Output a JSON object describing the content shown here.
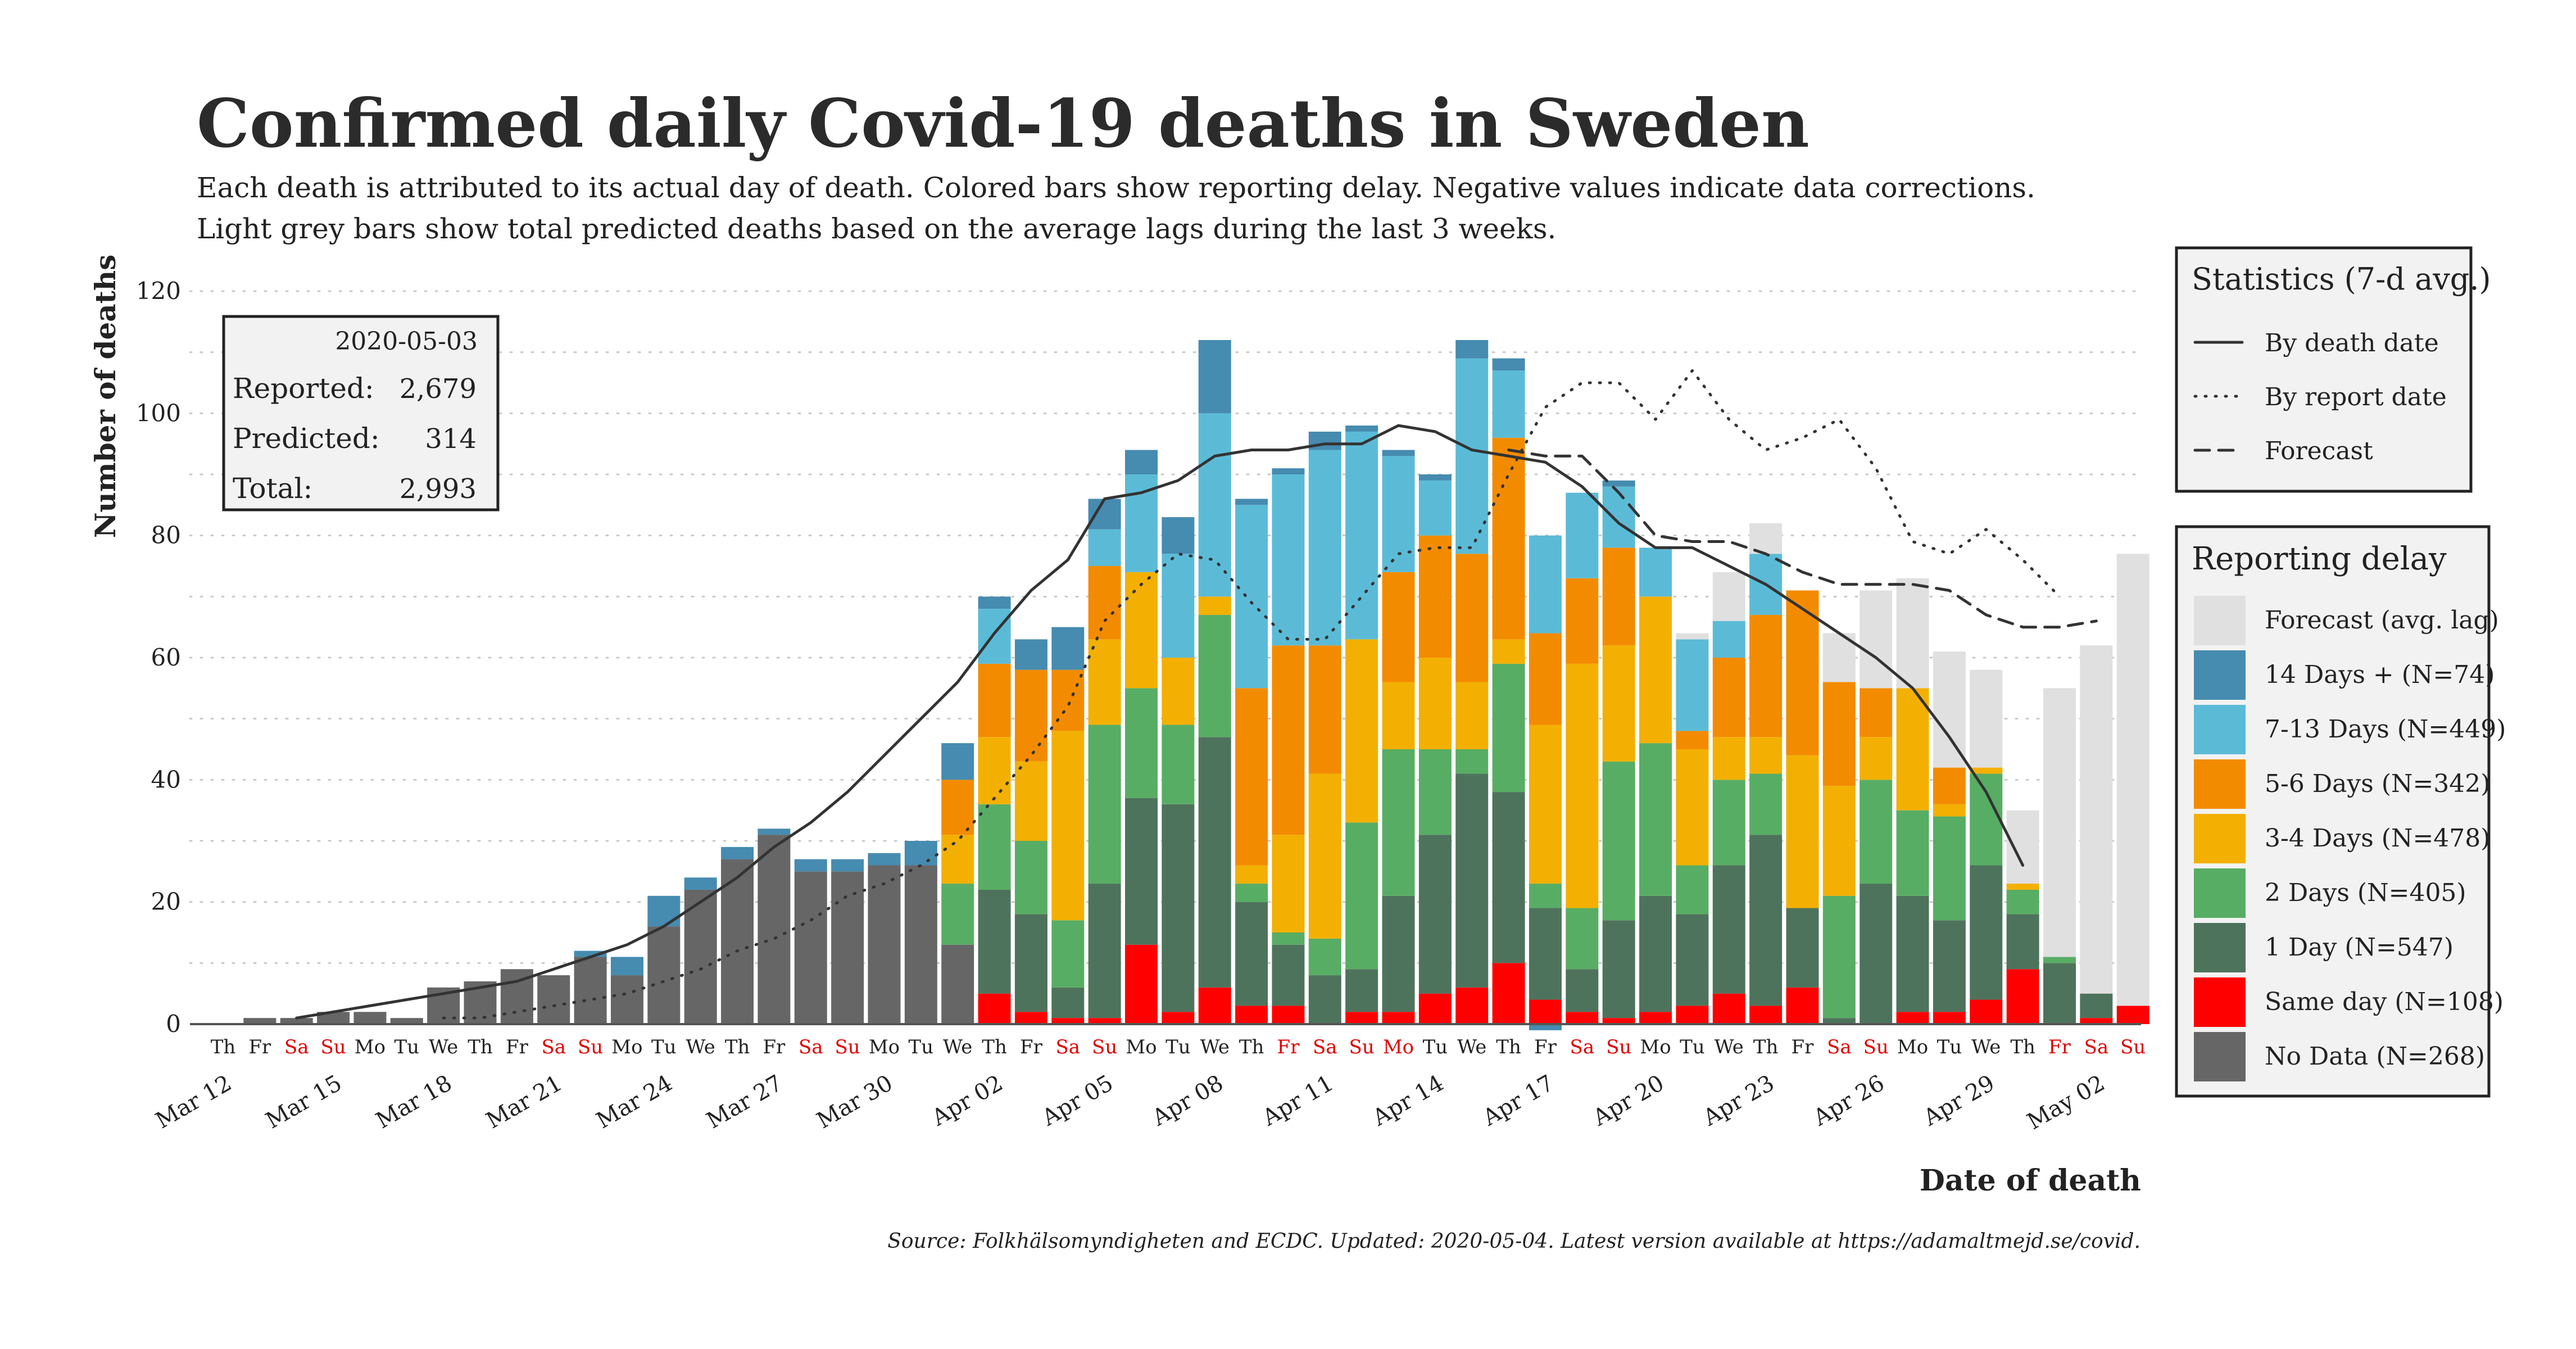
{
  "title": "Confirmed daily Covid-19 deaths in Sweden",
  "subtitle_line1": "Each death is attributed to its actual day of death. Colored bars show reporting delay. Negative values indicate data corrections.",
  "subtitle_line2": "Light grey bars show total predicted deaths based on the average lags during the last 3 weeks.",
  "caption": "Source: Folkhälsomyndigheten and ECDC. Updated: 2020-05-04. Latest version available at https://adamaltmejd.se/covid.",
  "infobox": {
    "date": "2020-05-03",
    "reported_label": "Reported:",
    "reported_value": "2,679",
    "predicted_label": "Predicted:",
    "predicted_value": "314",
    "total_label": "Total:",
    "total_value": "2,993"
  },
  "colors": {
    "No Data": "#666666",
    "Same day": "#ff0000",
    "1 Day": "#4e735c",
    "2 Days": "#58ad64",
    "3-4 Days": "#f3b002",
    "5-6 Days": "#f38b00",
    "7-13 Days": "#5bbbd7",
    "14 Days +": "#468bb0",
    "Forecast": "#e0e0e0",
    "weekend_label": "#e00000",
    "weekday_label": "#222222"
  },
  "chart_data": {
    "type": "bar",
    "stacked": true,
    "title": "Confirmed daily Covid-19 deaths in Sweden",
    "xlabel": "Date of death",
    "ylabel": "Number of deaths",
    "ylim": [
      0,
      120
    ],
    "yticks": [
      0,
      20,
      40,
      60,
      80,
      100,
      120
    ],
    "grid": true,
    "dates": [
      "Mar 12",
      "Mar 13",
      "Mar 14",
      "Mar 15",
      "Mar 16",
      "Mar 17",
      "Mar 18",
      "Mar 19",
      "Mar 20",
      "Mar 21",
      "Mar 22",
      "Mar 23",
      "Mar 24",
      "Mar 25",
      "Mar 26",
      "Mar 27",
      "Mar 28",
      "Mar 29",
      "Mar 30",
      "Mar 31",
      "Apr 01",
      "Apr 02",
      "Apr 03",
      "Apr 04",
      "Apr 05",
      "Apr 06",
      "Apr 07",
      "Apr 08",
      "Apr 09",
      "Apr 10",
      "Apr 11",
      "Apr 12",
      "Apr 13",
      "Apr 14",
      "Apr 15",
      "Apr 16",
      "Apr 17",
      "Apr 18",
      "Apr 19",
      "Apr 20",
      "Apr 21",
      "Apr 22",
      "Apr 23",
      "Apr 24",
      "Apr 25",
      "Apr 26",
      "Apr 27",
      "Apr 28",
      "Apr 29",
      "Apr 30",
      "May 01",
      "May 02",
      "May 03"
    ],
    "weekdays": [
      "Th",
      "Fr",
      "Sa",
      "Su",
      "Mo",
      "Tu",
      "We",
      "Th",
      "Fr",
      "Sa",
      "Su",
      "Mo",
      "Tu",
      "We",
      "Th",
      "Fr",
      "Sa",
      "Su",
      "Mo",
      "Tu",
      "We",
      "Th",
      "Fr",
      "Sa",
      "Su",
      "Mo",
      "Tu",
      "We",
      "Th",
      "Fr",
      "Sa",
      "Su",
      "Mo",
      "Tu",
      "We",
      "Th",
      "Fr",
      "Sa",
      "Su",
      "Mo",
      "Tu",
      "We",
      "Th",
      "Fr",
      "Sa",
      "Su",
      "Mo",
      "Tu",
      "We",
      "Th",
      "Fr",
      "Sa",
      "Su"
    ],
    "red_weekday_indices": [
      2,
      3,
      9,
      10,
      16,
      17,
      23,
      24,
      29,
      30,
      31,
      32,
      37,
      38,
      44,
      45,
      50,
      51,
      52
    ],
    "x_tick_labels": [
      "Mar 12",
      "Mar 15",
      "Mar 18",
      "Mar 21",
      "Mar 24",
      "Mar 27",
      "Mar 30",
      "Apr 02",
      "Apr 05",
      "Apr 08",
      "Apr 11",
      "Apr 14",
      "Apr 17",
      "Apr 20",
      "Apr 23",
      "Apr 26",
      "Apr 29",
      "May 02"
    ],
    "x_tick_indices": [
      0,
      3,
      6,
      9,
      12,
      15,
      18,
      21,
      24,
      27,
      30,
      33,
      36,
      39,
      42,
      45,
      48,
      51
    ],
    "series": [
      {
        "name": "No Data",
        "legend": "No Data (N=268)",
        "values": [
          0,
          1,
          1,
          2,
          2,
          1,
          6,
          7,
          9,
          8,
          11,
          8,
          16,
          22,
          27,
          31,
          25,
          25,
          26,
          26,
          13,
          0,
          0,
          0,
          0,
          0,
          0,
          0,
          0,
          0,
          0,
          0,
          0,
          0,
          0,
          0,
          0,
          0,
          0,
          0,
          0,
          0,
          0,
          0,
          0,
          0,
          0,
          0,
          0,
          0,
          0,
          0,
          0
        ]
      },
      {
        "name": "Same day",
        "legend": "Same day (N=108)",
        "values": [
          0,
          0,
          0,
          0,
          0,
          0,
          0,
          0,
          0,
          0,
          0,
          0,
          0,
          0,
          0,
          0,
          0,
          0,
          0,
          0,
          0,
          5,
          2,
          1,
          1,
          13,
          2,
          6,
          3,
          3,
          0,
          2,
          2,
          5,
          6,
          10,
          4,
          2,
          1,
          2,
          3,
          5,
          3,
          6,
          0,
          0,
          2,
          2,
          4,
          9,
          0,
          1,
          3
        ]
      },
      {
        "name": "1 Day",
        "legend": "1 Day (N=547)",
        "values": [
          0,
          0,
          0,
          0,
          0,
          0,
          0,
          0,
          0,
          0,
          0,
          0,
          0,
          0,
          0,
          0,
          0,
          0,
          0,
          0,
          0,
          17,
          16,
          5,
          22,
          24,
          34,
          41,
          17,
          10,
          8,
          7,
          19,
          26,
          35,
          28,
          15,
          7,
          16,
          19,
          15,
          21,
          28,
          13,
          1,
          23,
          19,
          15,
          22,
          9,
          10,
          4,
          0
        ]
      },
      {
        "name": "2 Days",
        "legend": "2 Days (N=405)",
        "values": [
          0,
          0,
          0,
          0,
          0,
          0,
          0,
          0,
          0,
          0,
          0,
          0,
          0,
          0,
          0,
          0,
          0,
          0,
          0,
          0,
          10,
          14,
          12,
          11,
          26,
          18,
          13,
          20,
          3,
          2,
          6,
          24,
          24,
          14,
          4,
          21,
          4,
          10,
          26,
          25,
          8,
          14,
          10,
          0,
          20,
          17,
          14,
          17,
          15,
          4,
          1,
          0,
          0
        ]
      },
      {
        "name": "3-4 Days",
        "legend": "3-4 Days (N=478)",
        "values": [
          0,
          0,
          0,
          0,
          0,
          0,
          0,
          0,
          0,
          0,
          0,
          0,
          0,
          0,
          0,
          0,
          0,
          0,
          0,
          0,
          8,
          11,
          13,
          31,
          14,
          19,
          11,
          3,
          3,
          16,
          27,
          30,
          11,
          15,
          11,
          4,
          26,
          40,
          19,
          24,
          19,
          7,
          6,
          25,
          18,
          7,
          20,
          2,
          1,
          1,
          0,
          0,
          0
        ]
      },
      {
        "name": "5-6 Days",
        "legend": "5-6 Days (N=342)",
        "values": [
          0,
          0,
          0,
          0,
          0,
          0,
          0,
          0,
          0,
          0,
          0,
          0,
          0,
          0,
          0,
          0,
          0,
          0,
          0,
          0,
          9,
          12,
          15,
          10,
          12,
          0,
          0,
          0,
          29,
          31,
          21,
          0,
          18,
          20,
          21,
          33,
          15,
          14,
          16,
          0,
          3,
          13,
          20,
          27,
          17,
          8,
          0,
          6,
          0,
          0,
          0,
          0,
          0
        ]
      },
      {
        "name": "7-13 Days",
        "legend": "7-13 Days (N=449)",
        "values": [
          0,
          0,
          0,
          0,
          0,
          0,
          0,
          0,
          0,
          0,
          0,
          0,
          0,
          0,
          0,
          0,
          0,
          0,
          0,
          0,
          0,
          9,
          0,
          0,
          6,
          16,
          17,
          30,
          30,
          28,
          32,
          34,
          19,
          9,
          32,
          11,
          16,
          14,
          10,
          8,
          15,
          6,
          10,
          0,
          0,
          0,
          0,
          0,
          0,
          0,
          0,
          0,
          0
        ]
      },
      {
        "name": "14 Days +",
        "legend": "14 Days + (N=74)",
        "values": [
          0,
          0,
          0,
          0,
          0,
          0,
          0,
          0,
          0,
          0,
          1,
          3,
          5,
          2,
          2,
          1,
          2,
          2,
          2,
          4,
          6,
          2,
          5,
          7,
          5,
          4,
          6,
          12,
          1,
          1,
          3,
          1,
          1,
          1,
          3,
          2,
          -1,
          0,
          1,
          0,
          0,
          0,
          0,
          0,
          0,
          0,
          0,
          0,
          0,
          0,
          0,
          0,
          0
        ]
      },
      {
        "name": "Forecast",
        "legend": "Forecast (avg. lag)",
        "values": [
          0,
          0,
          0,
          0,
          0,
          0,
          0,
          0,
          0,
          0,
          0,
          0,
          0,
          0,
          0,
          0,
          0,
          0,
          0,
          0,
          0,
          0,
          0,
          0,
          0,
          0,
          0,
          0,
          0,
          0,
          0,
          0,
          0,
          0,
          0,
          0,
          0,
          0,
          0,
          0,
          1,
          8,
          5,
          0,
          8,
          16,
          18,
          19,
          16,
          12,
          44,
          57,
          74
        ]
      }
    ],
    "lines": [
      {
        "name": "By death date",
        "style": "solid",
        "values": [
          null,
          null,
          1,
          2,
          3,
          4,
          5,
          6,
          7,
          9,
          11,
          13,
          16,
          20,
          24,
          29,
          33,
          38,
          44,
          50,
          56,
          64,
          71,
          76,
          86,
          87,
          89,
          93,
          94,
          94,
          95,
          95,
          98,
          97,
          94,
          93,
          92,
          88,
          82,
          78,
          78,
          75,
          72,
          68,
          64,
          60,
          55,
          47,
          38,
          26,
          null,
          null,
          null
        ]
      },
      {
        "name": "By report date",
        "style": "dotted",
        "values": [
          null,
          null,
          null,
          null,
          null,
          null,
          1,
          1,
          2,
          3,
          4,
          5,
          7,
          9,
          12,
          14,
          17,
          21,
          23,
          26,
          30,
          37,
          44,
          52,
          66,
          72,
          77,
          76,
          69,
          63,
          63,
          70,
          77,
          78,
          78,
          90,
          101,
          105,
          105,
          99,
          107,
          99,
          94,
          96,
          99,
          91,
          79,
          77,
          81,
          76,
          70,
          null,
          null
        ]
      },
      {
        "name": "Forecast",
        "style": "dashed",
        "values": [
          null,
          null,
          null,
          null,
          null,
          null,
          null,
          null,
          null,
          null,
          null,
          null,
          null,
          null,
          null,
          null,
          null,
          null,
          null,
          null,
          null,
          null,
          null,
          null,
          null,
          null,
          null,
          null,
          null,
          null,
          null,
          null,
          null,
          null,
          null,
          94,
          93,
          93,
          87,
          80,
          79,
          79,
          77,
          74,
          72,
          72,
          72,
          71,
          67,
          65,
          65,
          66,
          null
        ]
      }
    ],
    "legend_statistics": {
      "title": "Statistics (7-d avg.)",
      "entries": [
        "By death date",
        "By report date",
        "Forecast"
      ],
      "position": "right-top"
    },
    "legend_delay": {
      "title": "Reporting delay",
      "position": "right"
    }
  }
}
